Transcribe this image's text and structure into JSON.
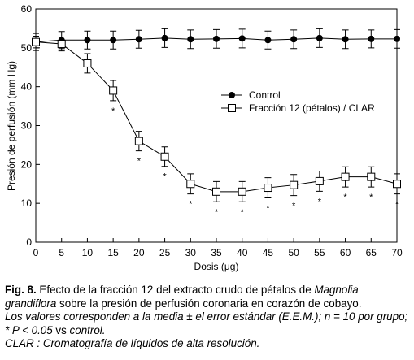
{
  "chart_data": {
    "type": "line",
    "x_label": "Dosis (μg)",
    "y_label": "Presión de perfusión (mm Hg)",
    "x": [
      0,
      5,
      10,
      15,
      20,
      25,
      30,
      35,
      40,
      45,
      50,
      55,
      60,
      65,
      70
    ],
    "xlim": [
      0,
      70
    ],
    "xticks": [
      0,
      5,
      10,
      15,
      20,
      25,
      30,
      35,
      40,
      45,
      50,
      55,
      60,
      65,
      70
    ],
    "ylim": [
      0,
      60
    ],
    "yticks": [
      0,
      10,
      20,
      30,
      40,
      50,
      60
    ],
    "series": [
      {
        "name": "Control",
        "marker": "filled-circle",
        "color": "#000000",
        "values": [
          51.5,
          52,
          52,
          52,
          52.2,
          52.5,
          52.2,
          52.3,
          52.4,
          52,
          52.2,
          52.5,
          52.2,
          52.3,
          52.3
        ],
        "errors": [
          2.2,
          2.2,
          2.3,
          2.3,
          2.3,
          2.4,
          2.4,
          2.4,
          2.4,
          2.3,
          2.4,
          2.4,
          2.4,
          2.3,
          2.4
        ]
      },
      {
        "name": "Fracción 12 (pétalos) / CLAR",
        "marker": "open-square",
        "color": "#000000",
        "values": [
          51.5,
          51,
          46,
          39,
          26,
          22,
          15,
          13,
          13,
          14,
          14.7,
          15.7,
          16.8,
          16.8,
          15
        ],
        "errors": [
          1.5,
          1.8,
          2.5,
          2.6,
          2.5,
          2.5,
          2.6,
          2.6,
          2.6,
          2.6,
          2.7,
          2.6,
          2.6,
          2.6,
          2.6
        ],
        "significance": [
          null,
          null,
          null,
          "*",
          "*",
          "*",
          "*",
          "*",
          "*",
          "*",
          "*",
          "*",
          "*",
          "*",
          "*"
        ]
      }
    ],
    "legend": "center-right",
    "caption": [
      [
        {
          "text": "Fig. 8.",
          "style": "bold"
        },
        {
          "text": " Efecto de la fracción 12 del extracto crudo de pétalos de ",
          "style": "normal"
        },
        {
          "text": "Magnolia grandiflora",
          "style": "italic"
        },
        {
          "text": " sobre la presión de perfusión coronaria en corazón de cobayo.",
          "style": "normal"
        }
      ],
      [
        {
          "text": "Los valores corresponden a la media ± el error estándar (E.E.M.); n = 10 por grupo; * P < 0.05",
          "style": "italic"
        },
        {
          "text": " vs ",
          "style": "normal"
        },
        {
          "text": "control.",
          "style": "italic"
        }
      ],
      [
        {
          "text": "CLAR : Cromatografía de líquidos de alta resolución.",
          "style": "italic"
        }
      ]
    ]
  }
}
